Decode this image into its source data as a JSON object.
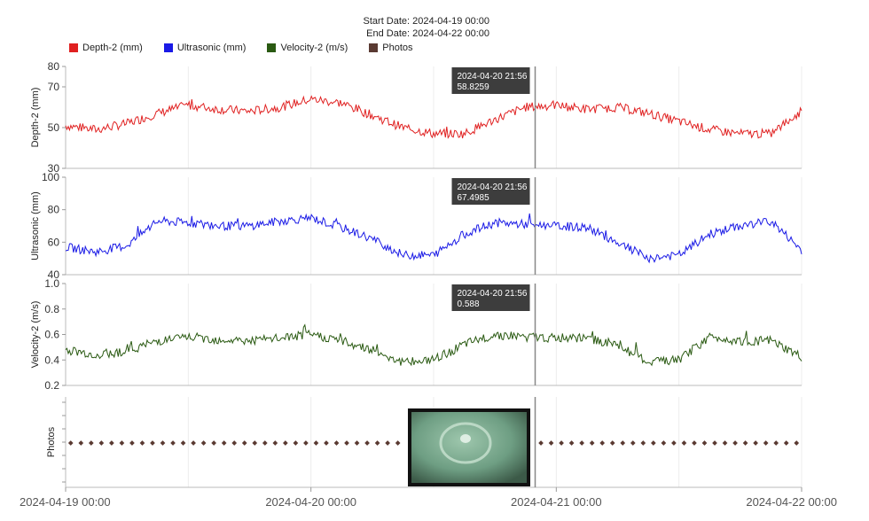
{
  "header": {
    "start_date": "Start Date: 2024-04-19 00:00",
    "end_date": "End Date: 2024-04-22 00:00"
  },
  "legend": [
    {
      "label": "Depth-2 (mm)",
      "color": "#e02020"
    },
    {
      "label": "Ultrasonic (mm)",
      "color": "#1a1ae6"
    },
    {
      "label": "Velocity-2 (m/s)",
      "color": "#2a5a12"
    },
    {
      "label": "Photos",
      "color": "#5a3a32"
    }
  ],
  "cursor": {
    "time": "2024-04-20 21:56",
    "photo_icon": "pipe-photo-thumbnail"
  },
  "colors": {
    "accent_dark": "#333333",
    "photo_dot": "#5a3a32",
    "grid": "#d8d8d8"
  },
  "chart_data": [
    {
      "type": "line",
      "title": "",
      "xlabel": "",
      "ylabel": "Depth-2 (mm)",
      "ylim": [
        30,
        80
      ],
      "yticks": [
        "30",
        "50",
        "70",
        "80"
      ],
      "xticks": [
        "2024-04-19 00:00",
        "2024-04-20 00:00",
        "2024-04-21 00:00",
        "2024-04-22 00:00"
      ],
      "series": [
        {
          "name": "Depth-2 (mm)",
          "color": "#e02020",
          "x": [
            0,
            3,
            6,
            9,
            12,
            15,
            18,
            21,
            24,
            27,
            30,
            33,
            36,
            39,
            42,
            45,
            48,
            51,
            54,
            57,
            60,
            63,
            66,
            69,
            72
          ],
          "values": [
            51,
            49,
            52,
            57,
            61,
            59,
            58,
            60,
            64,
            62,
            56,
            50,
            47,
            47,
            54,
            60,
            61,
            59,
            60,
            57,
            53,
            49,
            47,
            47,
            58
          ]
        }
      ],
      "callout": {
        "label": "2024-04-20 21:56",
        "value": "58.8259"
      }
    },
    {
      "type": "line",
      "title": "",
      "xlabel": "",
      "ylabel": "Ultrasonic (mm)",
      "ylim": [
        40,
        100
      ],
      "yticks": [
        "40",
        "60",
        "80",
        "100"
      ],
      "series": [
        {
          "name": "Ultrasonic (mm)",
          "color": "#1a1ae6",
          "x": [
            0,
            3,
            6,
            9,
            12,
            15,
            18,
            21,
            24,
            27,
            30,
            33,
            36,
            39,
            42,
            45,
            48,
            51,
            54,
            57,
            60,
            63,
            66,
            69,
            72
          ],
          "values": [
            57,
            54,
            58,
            73,
            72,
            70,
            70,
            73,
            75,
            69,
            62,
            52,
            52,
            65,
            72,
            71,
            70,
            69,
            60,
            50,
            52,
            65,
            70,
            73,
            55
          ]
        }
      ],
      "callout": {
        "label": "2024-04-20 21:56",
        "value": "67.4985"
      }
    },
    {
      "type": "line",
      "title": "",
      "xlabel": "",
      "ylabel": "Velocity-2 (m/s)",
      "ylim": [
        0.2,
        1.0
      ],
      "yticks": [
        "0.2",
        "0.4",
        "0.6",
        "0.8",
        "1.0"
      ],
      "series": [
        {
          "name": "Velocity-2 (m/s)",
          "color": "#2a5a12",
          "x": [
            0,
            3,
            6,
            9,
            12,
            15,
            18,
            21,
            24,
            27,
            30,
            33,
            36,
            39,
            42,
            45,
            48,
            51,
            54,
            57,
            60,
            63,
            66,
            69,
            72
          ],
          "values": [
            0.48,
            0.44,
            0.47,
            0.55,
            0.58,
            0.56,
            0.55,
            0.57,
            0.6,
            0.55,
            0.48,
            0.38,
            0.4,
            0.52,
            0.6,
            0.58,
            0.57,
            0.57,
            0.52,
            0.38,
            0.4,
            0.58,
            0.55,
            0.55,
            0.42
          ]
        }
      ],
      "callout": {
        "label": "2024-04-20 21:56",
        "value": "0.588"
      }
    },
    {
      "type": "scatter",
      "title": "",
      "ylabel": "Photos",
      "series": [
        {
          "name": "Photos",
          "color": "#5a3a32",
          "interval_hours": 1
        }
      ]
    }
  ]
}
